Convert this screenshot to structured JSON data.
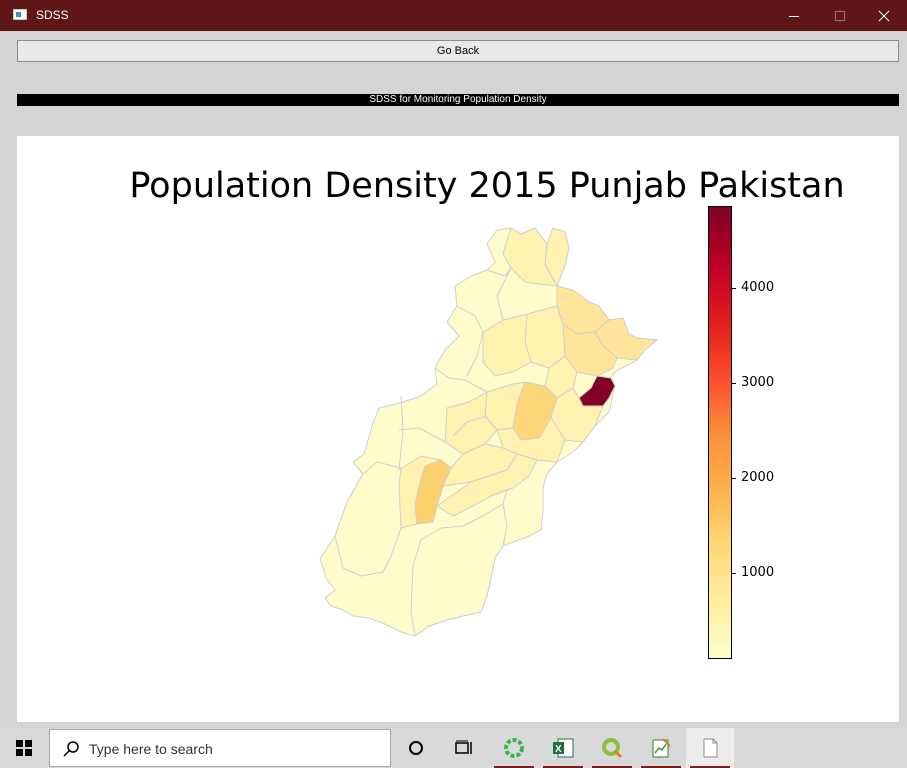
{
  "window": {
    "title": "SDSS",
    "minimize_icon": "minimize-icon",
    "maximize_icon": "maximize-icon",
    "close_icon": "close-icon"
  },
  "toolbar": {
    "go_back_label": "Go Back"
  },
  "banner": {
    "text": "SDSS for Monitoring Population Density"
  },
  "chart_data": {
    "type": "choropleth-map",
    "title": "Population Density 2015 Punjab Pakistan",
    "colorbar": {
      "colormap": "YlOrRd",
      "range": [
        100,
        4850
      ],
      "ticks": [
        1000,
        2000,
        3000,
        4000
      ],
      "tick_labels": [
        "1000",
        "2000",
        "3000",
        "4000"
      ]
    },
    "colors": {
      "low": "#fffccc",
      "light": "#fff1b0",
      "mid": "#ffe49a",
      "midhigh": "#fed67a",
      "high": "#fdd06e",
      "max": "#800026",
      "border": "#cfcfcf"
    }
  },
  "taskbar": {
    "search_placeholder": "Type here to search",
    "icons": [
      "windows-start-icon",
      "search-icon",
      "cortana-icon",
      "task-view-icon",
      "green-circle-app-icon",
      "excel-icon",
      "qgis-icon",
      "notepad-chart-icon",
      "blank-document-icon"
    ]
  }
}
